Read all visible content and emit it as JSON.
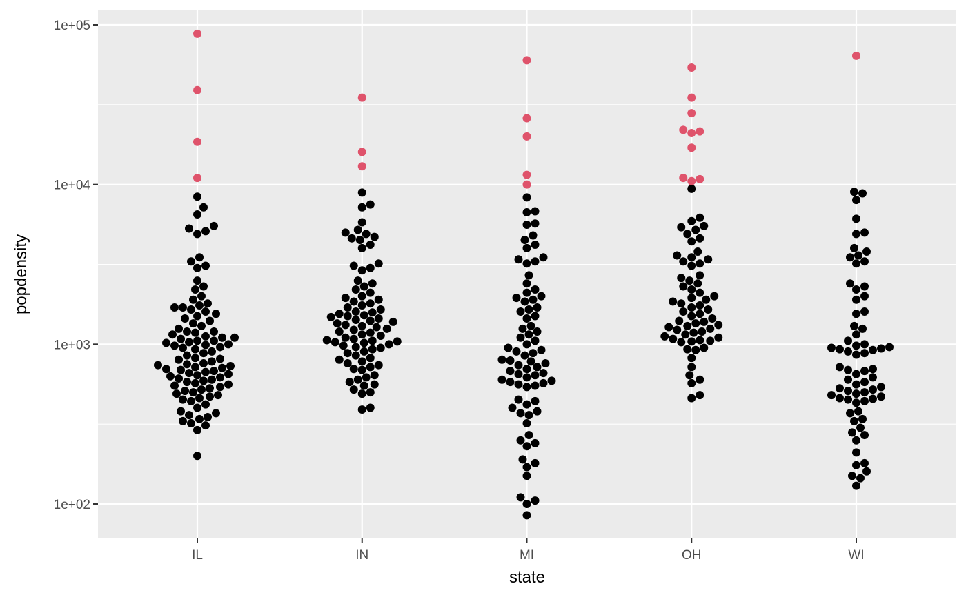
{
  "chart_data": {
    "type": "scatter",
    "xlabel": "state",
    "ylabel": "popdensity",
    "y_scale": "log10",
    "ylim": [
      60,
      120000
    ],
    "categories": [
      "IL",
      "IN",
      "MI",
      "OH",
      "WI"
    ],
    "y_ticks": [
      {
        "value": 100,
        "label": "1e+02"
      },
      {
        "value": 1000,
        "label": "1e+03"
      },
      {
        "value": 10000,
        "label": "1e+04"
      },
      {
        "value": 100000,
        "label": "1e+05"
      }
    ],
    "grid": true,
    "colors": {
      "panel": "#ebebeb",
      "grid": "#ffffff",
      "point_normal": "#000000",
      "point_outlier": "#df536b"
    },
    "points": {
      "IL": {
        "outliers": [
          88000,
          39000,
          18500,
          11000
        ],
        "values": [
          8400,
          7200,
          6500,
          5500,
          5300,
          5100,
          4900,
          3500,
          3300,
          3100,
          3000,
          2500,
          2300,
          2200,
          2000,
          1900,
          1800,
          1750,
          1700,
          1700,
          1650,
          1600,
          1550,
          1500,
          1450,
          1400,
          1350,
          1300,
          1250,
          1200,
          1200,
          1180,
          1150,
          1120,
          1100,
          1100,
          1080,
          1050,
          1050,
          1030,
          1020,
          1000,
          990,
          980,
          960,
          950,
          930,
          900,
          880,
          850,
          820,
          810,
          800,
          780,
          760,
          750,
          740,
          730,
          720,
          710,
          700,
          690,
          680,
          670,
          660,
          650,
          640,
          630,
          620,
          610,
          600,
          590,
          580,
          570,
          560,
          550,
          540,
          530,
          520,
          510,
          500,
          490,
          480,
          470,
          460,
          450,
          440,
          420,
          400,
          380,
          370,
          360,
          350,
          340,
          330,
          320,
          310,
          290,
          200
        ]
      },
      "IN": {
        "outliers": [
          35000,
          16000,
          13000
        ],
        "values": [
          8900,
          7500,
          7200,
          5800,
          5200,
          5000,
          4900,
          4700,
          4600,
          4500,
          4200,
          4000,
          3200,
          3100,
          3000,
          2900,
          2500,
          2400,
          2300,
          2200,
          2100,
          2000,
          1950,
          1900,
          1850,
          1800,
          1750,
          1700,
          1650,
          1600,
          1580,
          1550,
          1520,
          1500,
          1480,
          1450,
          1420,
          1400,
          1380,
          1350,
          1320,
          1300,
          1280,
          1250,
          1230,
          1200,
          1180,
          1150,
          1130,
          1100,
          1080,
          1060,
          1050,
          1040,
          1030,
          1020,
          1000,
          980,
          960,
          950,
          930,
          900,
          880,
          850,
          820,
          800,
          780,
          760,
          740,
          720,
          700,
          690,
          640,
          620,
          600,
          580,
          560,
          550,
          520,
          500,
          490,
          400,
          390
        ]
      },
      "MI": {
        "outliers": [
          60000,
          26000,
          20000,
          11500,
          10000
        ],
        "values": [
          8300,
          6800,
          6700,
          5700,
          5600,
          4800,
          4500,
          4200,
          4000,
          3500,
          3400,
          3300,
          3200,
          2700,
          2400,
          2200,
          2100,
          2000,
          1950,
          1900,
          1850,
          1700,
          1650,
          1600,
          1500,
          1450,
          1300,
          1250,
          1200,
          1150,
          1100,
          1050,
          1000,
          950,
          920,
          900,
          880,
          850,
          800,
          790,
          780,
          760,
          740,
          720,
          700,
          680,
          660,
          650,
          640,
          620,
          600,
          590,
          580,
          570,
          560,
          550,
          540,
          450,
          440,
          420,
          400,
          380,
          370,
          360,
          320,
          270,
          250,
          240,
          230,
          190,
          180,
          170,
          150,
          110,
          105,
          100,
          85
        ]
      },
      "OH": {
        "outliers": [
          54000,
          35000,
          28000,
          22000,
          21500,
          21000,
          17000,
          11000,
          10800,
          10500
        ],
        "values": [
          9400,
          6200,
          5900,
          5500,
          5400,
          5200,
          4900,
          4600,
          4400,
          3800,
          3600,
          3500,
          3400,
          3300,
          3200,
          3100,
          2700,
          2600,
          2500,
          2400,
          2300,
          2200,
          2100,
          2000,
          1950,
          1900,
          1850,
          1800,
          1750,
          1700,
          1650,
          1600,
          1550,
          1500,
          1450,
          1400,
          1380,
          1350,
          1320,
          1300,
          1280,
          1250,
          1230,
          1200,
          1180,
          1150,
          1120,
          1100,
          1080,
          1060,
          1050,
          1040,
          1030,
          950,
          930,
          920,
          820,
          720,
          640,
          600,
          570,
          480,
          460
        ]
      },
      "WI": {
        "outliers": [
          64000
        ],
        "values": [
          9000,
          8800,
          8000,
          6100,
          5000,
          4900,
          4000,
          3800,
          3600,
          3500,
          3300,
          3200,
          2400,
          2300,
          2200,
          2000,
          1900,
          1600,
          1550,
          1300,
          1250,
          1150,
          1050,
          1000,
          980,
          960,
          950,
          940,
          930,
          920,
          900,
          880,
          860,
          720,
          700,
          690,
          680,
          650,
          620,
          600,
          580,
          560,
          540,
          530,
          520,
          510,
          500,
          490,
          480,
          470,
          460,
          455,
          450,
          440,
          430,
          380,
          370,
          340,
          330,
          300,
          280,
          270,
          250,
          210,
          180,
          175,
          160,
          150,
          145,
          130
        ]
      }
    }
  }
}
